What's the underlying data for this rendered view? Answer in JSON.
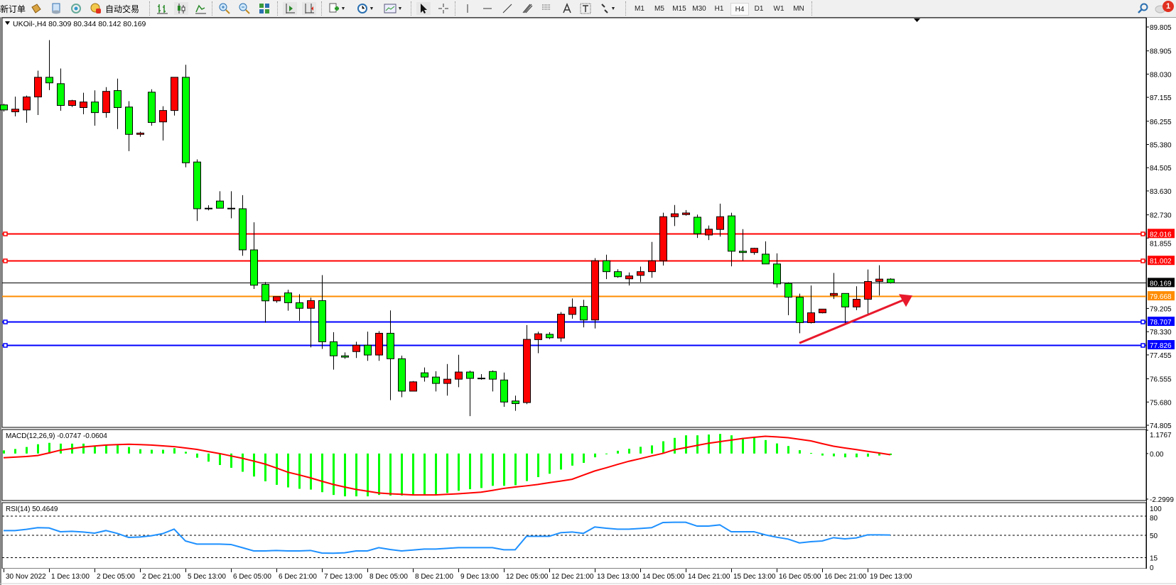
{
  "toolbar": {
    "new_order_label": "新订单",
    "auto_trading_label": "自动交易",
    "timeframes": [
      "M1",
      "M5",
      "M15",
      "M30",
      "H1",
      "H4",
      "D1",
      "W1",
      "MN"
    ],
    "active_timeframe": "H4",
    "notification_count": "1",
    "icons": [
      "market-watch-icon",
      "data-window-icon",
      "navigator-icon",
      "auto-trading-icon",
      "bar-chart-icon",
      "candlestick-icon",
      "line-chart-icon",
      "zoom-in-icon",
      "zoom-out-icon",
      "tile-windows-icon",
      "auto-scroll-icon",
      "chart-shift-icon",
      "indicators-icon",
      "periods-icon",
      "templates-icon",
      "cursor-icon",
      "crosshair-icon",
      "vertical-line-icon",
      "horizontal-line-icon",
      "trendline-icon",
      "fibonacci-icon",
      "fibo-fan-icon",
      "text-icon",
      "text-label-icon",
      "arrows-icon",
      "search-icon",
      "notification-icon"
    ]
  },
  "chart": {
    "header": "UKOil-,H4  80.309 80.344 80.142 80.169",
    "colors": {
      "up_candle": "#ff0000",
      "down_candle": "#00ff00",
      "candle_outline": "#000000",
      "macd_hist": "#00ff00",
      "macd_signal": "#ff0000",
      "rsi_line": "#1e90ff",
      "arrow": "#e8192c"
    },
    "price_axis": {
      "range": [
        74.805,
        89.805
      ],
      "ticks": [
        "89.805",
        "88.905",
        "88.030",
        "87.155",
        "86.255",
        "85.380",
        "84.505",
        "83.630",
        "82.730",
        "81.855",
        "79.205",
        "78.330",
        "77.455",
        "76.555",
        "75.680",
        "74.805"
      ]
    },
    "levels": [
      {
        "price": 82.016,
        "label": "82.016",
        "color": "#ff0000",
        "markers": true
      },
      {
        "price": 81.002,
        "label": "81.002",
        "color": "#ff0000",
        "markers": true
      },
      {
        "price": 80.169,
        "label": "80.169",
        "color": "#000000",
        "markers": false,
        "current": true
      },
      {
        "price": 79.668,
        "label": "79.668",
        "color": "#ff8c00",
        "markers": false
      },
      {
        "price": 78.707,
        "label": "78.707",
        "color": "#0000ff",
        "markers": true
      },
      {
        "price": 77.826,
        "label": "77.826",
        "color": "#0000ff",
        "markers": true
      }
    ],
    "time_labels": [
      "30 Nov 2022",
      "1 Dec 13:00",
      "2 Dec 05:00",
      "2 Dec 21:00",
      "5 Dec 13:00",
      "6 Dec 05:00",
      "6 Dec 21:00",
      "7 Dec 13:00",
      "8 Dec 05:00",
      "8 Dec 21:00",
      "9 Dec 13:00",
      "12 Dec 05:00",
      "12 Dec 21:00",
      "13 Dec 13:00",
      "14 Dec 05:00",
      "14 Dec 21:00",
      "15 Dec 13:00",
      "16 Dec 05:00",
      "16 Dec 21:00",
      "19 Dec 13:00"
    ],
    "annotation": {
      "type": "arrow",
      "from_candle": 70,
      "from_price": 77.9,
      "to_candle": 77,
      "to_price": 79.45
    }
  },
  "chart_data": {
    "type": "candlestick",
    "symbol": "UKOil-",
    "timeframe": "H4",
    "ohlc_columns": [
      "open",
      "high",
      "low",
      "close"
    ],
    "ohlc": [
      [
        86.87,
        86.91,
        86.62,
        86.68
      ],
      [
        86.61,
        87.18,
        86.44,
        86.71
      ],
      [
        86.68,
        87.22,
        86.2,
        87.17
      ],
      [
        87.17,
        88.16,
        86.49,
        87.91
      ],
      [
        87.91,
        89.31,
        87.43,
        87.7
      ],
      [
        87.67,
        88.24,
        86.65,
        86.85
      ],
      [
        86.85,
        87.06,
        86.79,
        87.03
      ],
      [
        86.77,
        87.33,
        86.52,
        86.98
      ],
      [
        86.98,
        87.42,
        86.09,
        86.58
      ],
      [
        86.58,
        87.54,
        86.39,
        87.38
      ],
      [
        87.41,
        87.86,
        85.96,
        86.77
      ],
      [
        86.79,
        87.01,
        85.13,
        85.76
      ],
      [
        85.76,
        85.86,
        85.67,
        85.81
      ],
      [
        87.35,
        87.46,
        86.09,
        86.21
      ],
      [
        86.23,
        86.82,
        85.53,
        86.66
      ],
      [
        86.66,
        87.91,
        86.47,
        87.91
      ],
      [
        87.91,
        88.38,
        84.52,
        84.69
      ],
      [
        84.72,
        84.82,
        82.5,
        82.96
      ],
      [
        82.98,
        83.09,
        82.9,
        82.96
      ],
      [
        83.25,
        83.62,
        82.98,
        82.98
      ],
      [
        82.98,
        83.62,
        82.6,
        82.97
      ],
      [
        82.96,
        83.47,
        81.19,
        81.41
      ],
      [
        81.41,
        82.45,
        79.94,
        80.08
      ],
      [
        80.11,
        80.2,
        78.67,
        79.49
      ],
      [
        79.49,
        79.65,
        79.42,
        79.65
      ],
      [
        79.79,
        79.91,
        79.12,
        79.42
      ],
      [
        79.42,
        79.74,
        78.74,
        79.21
      ],
      [
        79.21,
        79.61,
        77.74,
        79.5
      ],
      [
        79.5,
        80.46,
        77.68,
        77.95
      ],
      [
        77.95,
        78.31,
        76.9,
        77.42
      ],
      [
        77.42,
        77.55,
        77.31,
        77.37
      ],
      [
        77.58,
        77.95,
        77.34,
        77.82
      ],
      [
        77.82,
        78.33,
        77.23,
        77.45
      ],
      [
        77.45,
        78.35,
        77.23,
        78.27
      ],
      [
        78.27,
        79.13,
        75.75,
        77.31
      ],
      [
        77.31,
        77.43,
        75.86,
        76.09
      ],
      [
        76.09,
        76.47,
        76.09,
        76.44
      ],
      [
        76.78,
        76.98,
        76.45,
        76.62
      ],
      [
        76.62,
        76.84,
        76.08,
        76.38
      ],
      [
        76.38,
        77.11,
        75.92,
        76.54
      ],
      [
        76.54,
        77.46,
        76.24,
        76.81
      ],
      [
        76.81,
        76.86,
        75.15,
        76.57
      ],
      [
        76.58,
        76.73,
        76.52,
        76.57
      ],
      [
        76.83,
        76.87,
        76.08,
        76.54
      ],
      [
        76.51,
        76.79,
        75.5,
        75.68
      ],
      [
        75.72,
        75.92,
        75.35,
        75.62
      ],
      [
        75.66,
        78.58,
        75.6,
        78.04
      ],
      [
        78.03,
        78.33,
        77.52,
        78.25
      ],
      [
        78.23,
        78.31,
        78.05,
        78.1
      ],
      [
        78.09,
        79.07,
        77.95,
        78.99
      ],
      [
        78.98,
        79.58,
        78.82,
        79.25
      ],
      [
        79.28,
        79.53,
        78.49,
        78.77
      ],
      [
        78.77,
        81.1,
        78.45,
        81.0
      ],
      [
        81.0,
        81.23,
        80.31,
        80.59
      ],
      [
        80.59,
        80.68,
        80.36,
        80.4
      ],
      [
        80.32,
        80.56,
        80.07,
        80.43
      ],
      [
        80.45,
        80.78,
        80.2,
        80.59
      ],
      [
        80.59,
        81.71,
        80.36,
        81.0
      ],
      [
        81.0,
        82.81,
        80.82,
        82.66
      ],
      [
        82.66,
        83.1,
        82.31,
        82.77
      ],
      [
        82.74,
        82.91,
        82.7,
        82.8
      ],
      [
        82.64,
        82.74,
        81.86,
        82.02
      ],
      [
        81.97,
        82.33,
        81.78,
        82.19
      ],
      [
        82.18,
        83.15,
        81.91,
        82.66
      ],
      [
        82.69,
        82.81,
        80.79,
        81.36
      ],
      [
        81.36,
        82.19,
        81.0,
        81.31
      ],
      [
        81.31,
        81.49,
        81.23,
        81.47
      ],
      [
        81.25,
        81.73,
        80.88,
        80.88
      ],
      [
        80.88,
        81.28,
        79.99,
        80.13
      ],
      [
        80.15,
        80.19,
        78.95,
        79.63
      ],
      [
        79.63,
        79.76,
        78.27,
        78.67
      ],
      [
        78.67,
        80.07,
        78.64,
        79.04
      ],
      [
        79.04,
        79.18,
        79.02,
        79.18
      ],
      [
        79.7,
        80.54,
        79.56,
        79.77
      ],
      [
        79.77,
        79.77,
        78.58,
        79.26
      ],
      [
        79.26,
        80.04,
        79.14,
        79.55
      ],
      [
        79.55,
        80.67,
        78.98,
        80.22
      ],
      [
        80.22,
        80.83,
        79.69,
        80.31
      ],
      [
        80.309,
        80.344,
        80.142,
        80.169
      ]
    ],
    "macd": {
      "label": "MACD(12,26,9) -0.0747 -0.0604",
      "range": [
        -2.2999,
        1.1767
      ],
      "ticks": [
        "1.1767",
        "0.00",
        "-2.2999"
      ],
      "histogram": [
        0.16,
        0.23,
        0.33,
        0.47,
        0.54,
        0.5,
        0.5,
        0.5,
        0.38,
        0.42,
        0.42,
        0.33,
        0.22,
        0.19,
        0.19,
        0.27,
        0.09,
        -0.21,
        -0.41,
        -0.58,
        -0.72,
        -0.92,
        -1.16,
        -1.4,
        -1.58,
        -1.71,
        -1.78,
        -1.82,
        -1.95,
        -2.09,
        -2.16,
        -2.16,
        -2.16,
        -2.09,
        -2.12,
        -2.12,
        -2.09,
        -2.09,
        -2.09,
        -1.99,
        -1.88,
        -1.8,
        -1.74,
        -1.63,
        -1.63,
        -1.6,
        -1.39,
        -1.19,
        -1.02,
        -0.81,
        -0.61,
        -0.47,
        -0.19,
        -0.02,
        0.14,
        0.24,
        0.34,
        0.41,
        0.62,
        0.79,
        0.92,
        0.92,
        0.96,
        0.99,
        0.92,
        0.79,
        0.79,
        0.68,
        0.51,
        0.38,
        0.17,
        0.03,
        -0.1,
        -0.14,
        -0.19,
        -0.19,
        -0.16,
        -0.1,
        -0.0747
      ],
      "signal": [
        -0.21,
        -0.18,
        -0.15,
        -0.1,
        0.03,
        0.17,
        0.25,
        0.33,
        0.38,
        0.43,
        0.45,
        0.47,
        0.45,
        0.43,
        0.39,
        0.35,
        0.28,
        0.21,
        0.1,
        0.0,
        -0.12,
        -0.24,
        -0.38,
        -0.53,
        -0.73,
        -0.94,
        -1.08,
        -1.23,
        -1.4,
        -1.56,
        -1.69,
        -1.81,
        -1.9,
        -1.99,
        -2.03,
        -2.06,
        -2.09,
        -2.09,
        -2.09,
        -2.06,
        -2.03,
        -1.99,
        -1.95,
        -1.86,
        -1.76,
        -1.69,
        -1.63,
        -1.56,
        -1.47,
        -1.39,
        -1.3,
        -1.09,
        -0.88,
        -0.72,
        -0.55,
        -0.39,
        -0.26,
        -0.12,
        0.01,
        0.19,
        0.3,
        0.41,
        0.52,
        0.6,
        0.68,
        0.76,
        0.82,
        0.87,
        0.84,
        0.8,
        0.72,
        0.64,
        0.5,
        0.37,
        0.28,
        0.2,
        0.11,
        0.03,
        -0.0604
      ]
    },
    "rsi": {
      "label": "RSI(14) 50.4649",
      "range": [
        0,
        100
      ],
      "ticks": [
        "100",
        "80",
        "50",
        "15",
        "0"
      ],
      "levels": [
        80,
        50,
        15
      ],
      "values": [
        57.4,
        57.4,
        59.3,
        61.9,
        61.5,
        55.6,
        56.3,
        55.2,
        53.3,
        57.4,
        53.0,
        46.7,
        47.4,
        49.3,
        52.6,
        59.6,
        41.1,
        36.3,
        36.3,
        36.3,
        35.6,
        30.7,
        25.6,
        25.6,
        26.3,
        25.6,
        25.6,
        26.3,
        22.2,
        21.9,
        22.6,
        25.6,
        25.6,
        30.7,
        27.8,
        25.6,
        27.0,
        28.5,
        28.5,
        29.6,
        30.7,
        30.7,
        30.7,
        30.7,
        27.4,
        27.4,
        48.5,
        48.5,
        48.5,
        54.1,
        55.2,
        53.0,
        63.0,
        61.1,
        59.6,
        59.6,
        60.7,
        61.9,
        70.0,
        70.4,
        70.4,
        64.4,
        64.4,
        66.3,
        55.6,
        55.6,
        55.6,
        50.7,
        47.0,
        44.1,
        38.1,
        40.0,
        41.1,
        46.3,
        44.4,
        45.9,
        50.7,
        50.7,
        50.4649
      ]
    }
  }
}
